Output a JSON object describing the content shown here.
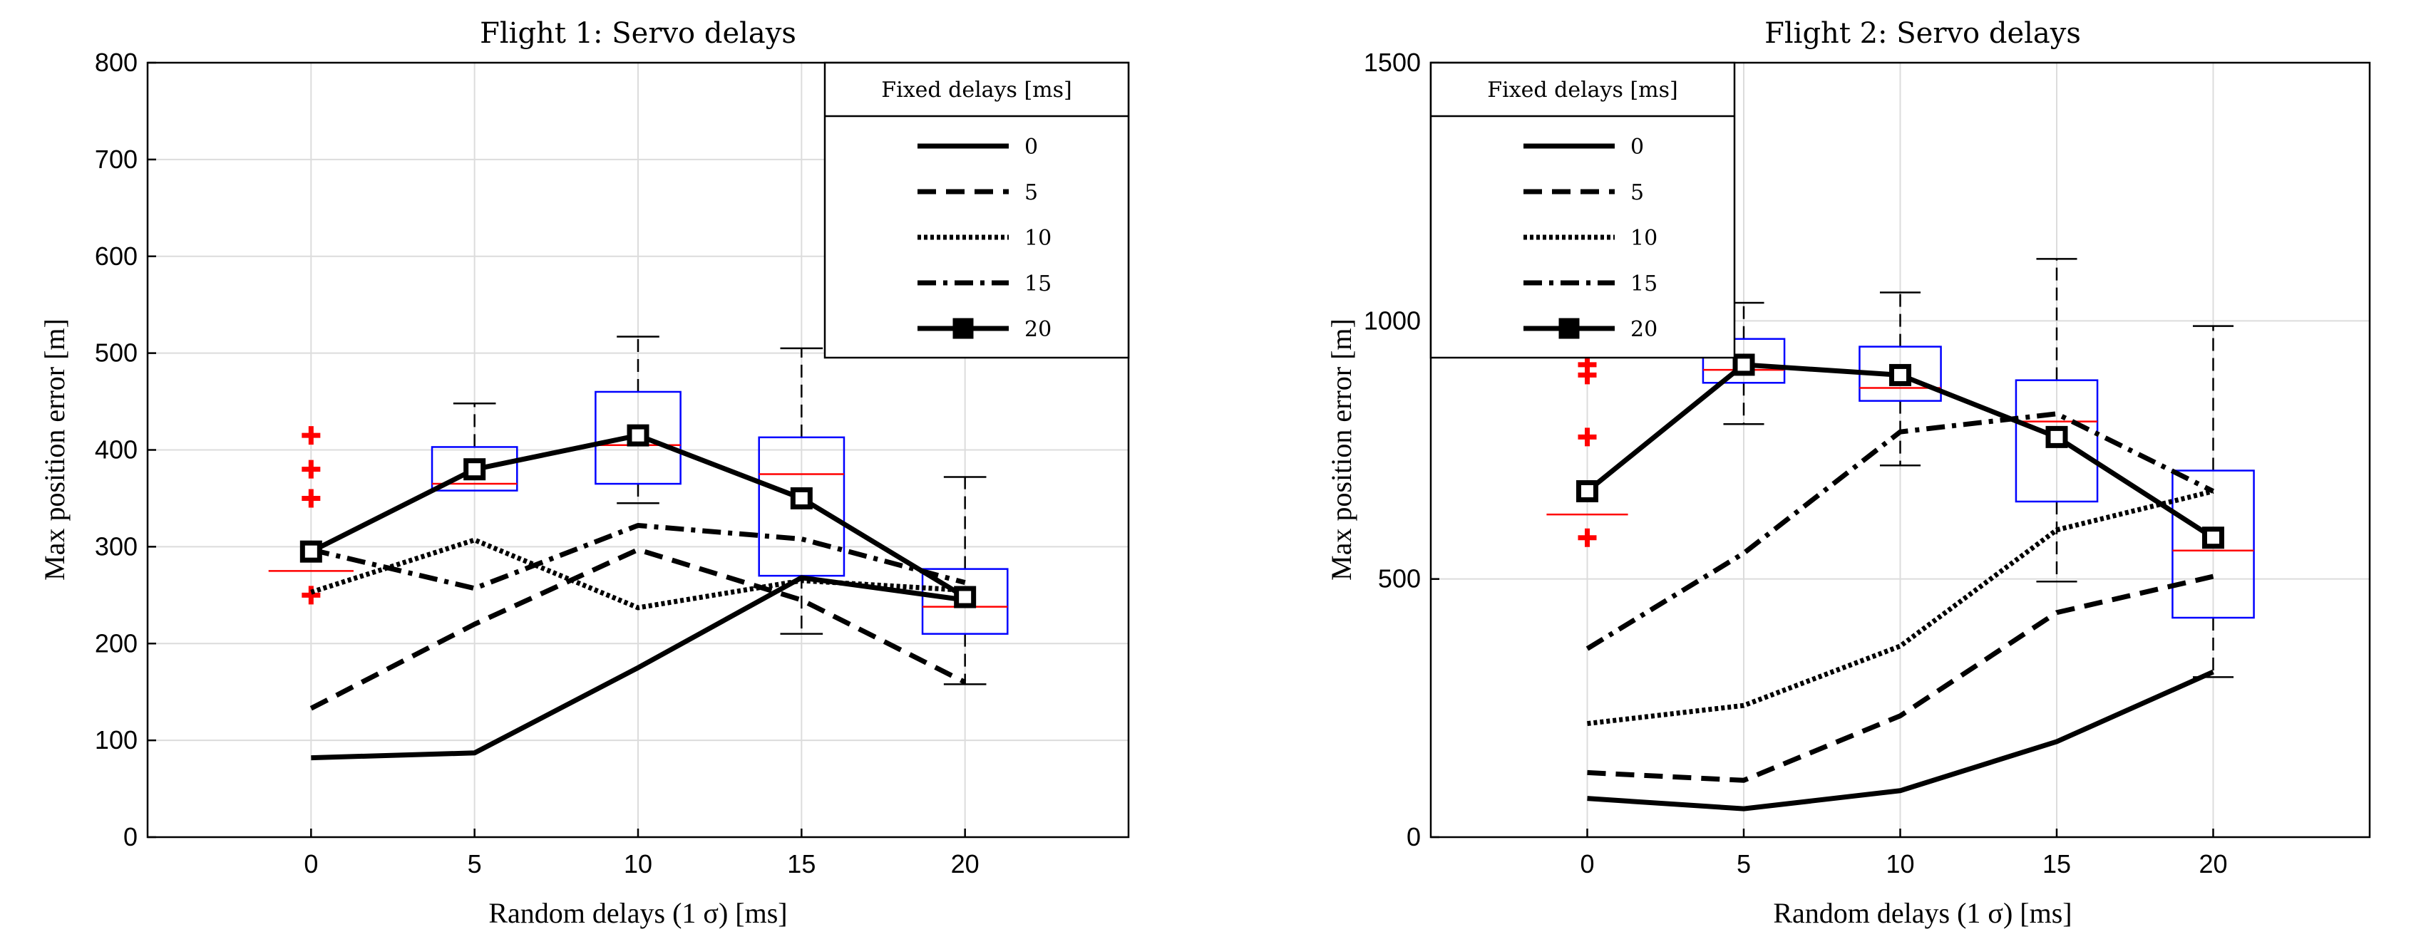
{
  "chart_data": [
    {
      "type": "line",
      "title": "Flight 1: Servo delays",
      "xlabel": "Random delays (1 σ)  [ms]",
      "ylabel": "Max position error [m]",
      "x": [
        0,
        5,
        10,
        15,
        20
      ],
      "xlim": [
        -5,
        25
      ],
      "ylim": [
        0,
        800
      ],
      "yticks": [
        0,
        100,
        200,
        300,
        400,
        500,
        600,
        700,
        800
      ],
      "grid": true,
      "legend": {
        "title": "Fixed delays [ms]",
        "placement": "top-right"
      },
      "series": [
        {
          "name": "0",
          "style": "solid",
          "values": [
            82,
            87,
            175,
            268,
            245
          ]
        },
        {
          "name": "5",
          "style": "dashed",
          "values": [
            133,
            220,
            297,
            245,
            160
          ]
        },
        {
          "name": "10",
          "style": "dotted",
          "values": [
            253,
            307,
            237,
            265,
            255
          ]
        },
        {
          "name": "15",
          "style": "dashdot",
          "values": [
            297,
            257,
            322,
            308,
            263
          ]
        },
        {
          "name": "20",
          "style": "solid-square",
          "values": [
            295,
            380,
            415,
            350,
            248
          ]
        }
      ],
      "boxes": [
        {
          "x": 0,
          "whisker_low": 275,
          "q1": 275,
          "median": 275,
          "q3": 275,
          "whisker_high": 275,
          "outliers": [
            250,
            350,
            380,
            415
          ]
        },
        {
          "x": 5,
          "whisker_low": 358,
          "q1": 358,
          "median": 365,
          "q3": 403,
          "whisker_high": 448,
          "outliers": []
        },
        {
          "x": 10,
          "whisker_low": 345,
          "q1": 365,
          "median": 405,
          "q3": 460,
          "whisker_high": 517,
          "outliers": []
        },
        {
          "x": 15,
          "whisker_low": 210,
          "q1": 270,
          "median": 375,
          "q3": 413,
          "whisker_high": 505,
          "outliers": []
        },
        {
          "x": 20,
          "whisker_low": 158,
          "q1": 210,
          "median": 238,
          "q3": 277,
          "whisker_high": 372,
          "outliers": []
        }
      ],
      "colors": {
        "box": "#0000ff",
        "median": "#ff0000",
        "outlier": "#ff0000",
        "grid": "#dcdcdc"
      }
    },
    {
      "type": "line",
      "title": "Flight 2: Servo delays",
      "xlabel": "Random delays (1 σ)  [ms]",
      "ylabel": "Max position error [m]",
      "x": [
        0,
        5,
        10,
        15,
        20
      ],
      "xlim": [
        -5,
        25
      ],
      "ylim": [
        0,
        1500
      ],
      "yticks": [
        0,
        500,
        1000,
        1500
      ],
      "grid": true,
      "legend": {
        "title": "Fixed delays [ms]",
        "placement": "top-left"
      },
      "series": [
        {
          "name": "0",
          "style": "solid",
          "values": [
            75,
            55,
            90,
            185,
            320
          ]
        },
        {
          "name": "5",
          "style": "dashed",
          "values": [
            125,
            110,
            235,
            435,
            505
          ]
        },
        {
          "name": "10",
          "style": "dotted",
          "values": [
            220,
            255,
            370,
            595,
            670
          ]
        },
        {
          "name": "15",
          "style": "dashdot",
          "values": [
            365,
            550,
            785,
            820,
            670
          ]
        },
        {
          "name": "20",
          "style": "solid-square",
          "values": [
            670,
            915,
            895,
            775,
            580
          ]
        }
      ],
      "boxes": [
        {
          "x": 0,
          "whisker_low": 625,
          "q1": 625,
          "median": 625,
          "q3": 625,
          "whisker_high": 625,
          "outliers": [
            580,
            775,
            895,
            915
          ]
        },
        {
          "x": 5,
          "whisker_low": 800,
          "q1": 880,
          "median": 905,
          "q3": 965,
          "whisker_high": 1035,
          "outliers": []
        },
        {
          "x": 10,
          "whisker_low": 720,
          "q1": 845,
          "median": 870,
          "q3": 950,
          "whisker_high": 1055,
          "outliers": []
        },
        {
          "x": 15,
          "whisker_low": 495,
          "q1": 650,
          "median": 805,
          "q3": 885,
          "whisker_high": 1120,
          "outliers": []
        },
        {
          "x": 20,
          "whisker_low": 310,
          "q1": 425,
          "median": 555,
          "q3": 710,
          "whisker_high": 990,
          "outliers": []
        }
      ],
      "colors": {
        "box": "#0000ff",
        "median": "#ff0000",
        "outlier": "#ff0000",
        "grid": "#dcdcdc"
      }
    }
  ]
}
